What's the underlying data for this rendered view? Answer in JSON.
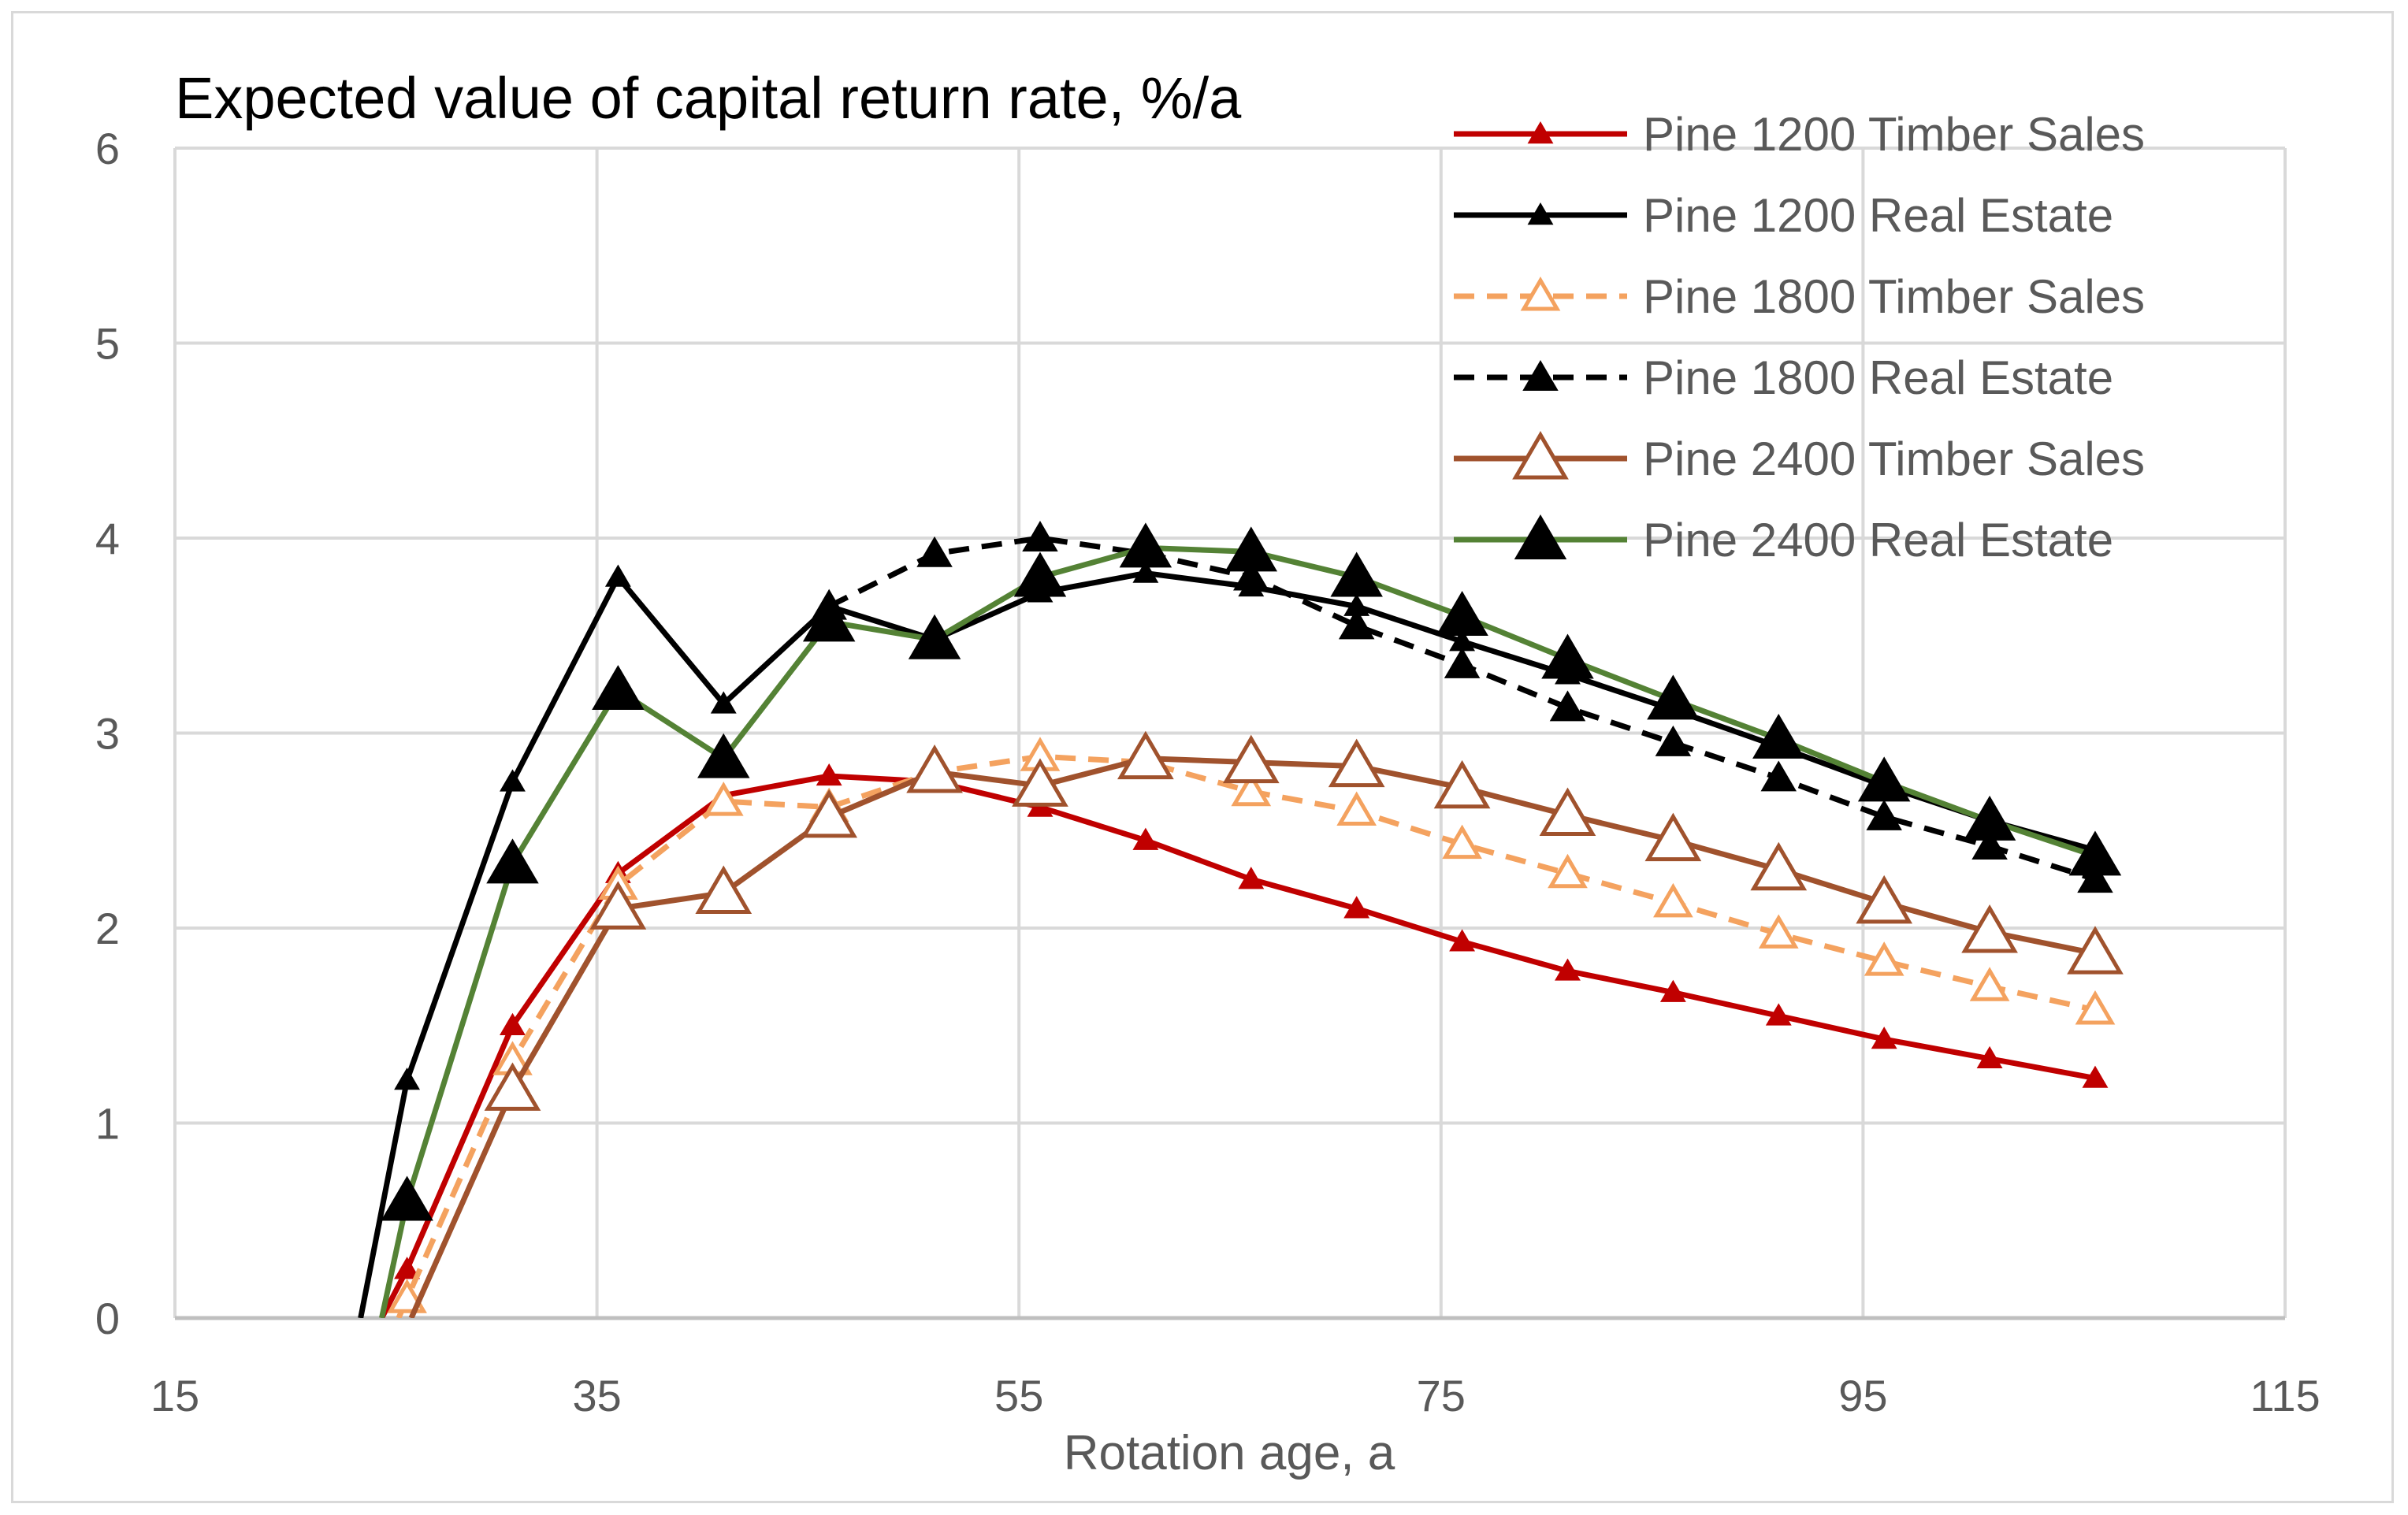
{
  "chart_data": {
    "type": "line",
    "title": "Expected value of capital return rate,  %/a",
    "xlabel": "Rotation age, a",
    "ylabel": "",
    "xlim": [
      15,
      115
    ],
    "ylim": [
      0,
      6
    ],
    "xticks": [
      "15",
      "35",
      "55",
      "75",
      "95",
      "115"
    ],
    "xtick_values": [
      15,
      35,
      55,
      75,
      95,
      115
    ],
    "yticks": [
      "0",
      "1",
      "2",
      "3",
      "4",
      "5",
      "6"
    ],
    "ytick_values": [
      0,
      1,
      2,
      3,
      4,
      5,
      6
    ],
    "grid": true,
    "legend_position": "top-right",
    "series": [
      {
        "name": "Pine 1200 Timber Sales",
        "color": "#c00000",
        "dash": false,
        "marker": "small-filled-triangle",
        "x": [
          24.8,
          26,
          31,
          36,
          41,
          46,
          51,
          56,
          61,
          66,
          71,
          76,
          81,
          86,
          91,
          96,
          101,
          106
        ],
        "y": [
          0,
          0.25,
          1.5,
          2.28,
          2.68,
          2.78,
          2.75,
          2.62,
          2.45,
          2.25,
          2.1,
          1.93,
          1.78,
          1.67,
          1.55,
          1.43,
          1.33,
          1.23
        ]
      },
      {
        "name": "Pine 1200 Real Estate",
        "color": "#000000",
        "dash": false,
        "marker": "small-filled-triangle",
        "x": [
          23.8,
          26,
          31,
          36,
          41,
          46,
          51,
          56,
          61,
          66,
          71,
          76,
          81,
          86,
          91,
          96,
          101,
          106
        ],
        "y": [
          0,
          1.22,
          2.75,
          3.8,
          3.15,
          3.65,
          3.48,
          3.72,
          3.82,
          3.75,
          3.65,
          3.47,
          3.3,
          3.12,
          2.93,
          2.73,
          2.55,
          2.4
        ]
      },
      {
        "name": "Pine 1800 Timber Sales",
        "color": "#f4a25f",
        "dash": true,
        "marker": "medium-open-triangle",
        "x": [
          25.6,
          26,
          31,
          36,
          41,
          46,
          51,
          56,
          61,
          66,
          71,
          76,
          81,
          86,
          91,
          96,
          101,
          106
        ],
        "y": [
          0,
          0.1,
          1.32,
          2.22,
          2.65,
          2.62,
          2.8,
          2.88,
          2.85,
          2.7,
          2.6,
          2.43,
          2.28,
          2.13,
          1.97,
          1.83,
          1.7,
          1.58
        ]
      },
      {
        "name": "Pine 1800 Real Estate",
        "color": "#000000",
        "dash": true,
        "marker": "medium-filled-triangle",
        "x": [
          46,
          51,
          56,
          61,
          66,
          71,
          76,
          81,
          86,
          91,
          96,
          101,
          106
        ],
        "y": [
          3.65,
          3.92,
          4.0,
          3.92,
          3.8,
          3.55,
          3.35,
          3.13,
          2.95,
          2.77,
          2.57,
          2.42,
          2.25
        ]
      },
      {
        "name": "Pine 2400 Timber Sales",
        "color": "#a0522d",
        "dash": false,
        "marker": "large-open-triangle",
        "x": [
          26.2,
          31,
          36,
          41,
          46,
          51,
          56,
          61,
          66,
          71,
          76,
          81,
          86,
          91,
          96,
          101,
          106
        ],
        "y": [
          0,
          1.17,
          2.1,
          2.18,
          2.57,
          2.8,
          2.73,
          2.87,
          2.85,
          2.83,
          2.72,
          2.58,
          2.45,
          2.3,
          2.13,
          1.98,
          1.87
        ]
      },
      {
        "name": "Pine 2400 Real Estate",
        "color": "#548235",
        "dash": false,
        "marker": "large-filled-triangle",
        "x": [
          24.8,
          26,
          31,
          36,
          41,
          46,
          51,
          56,
          61,
          66,
          71,
          76,
          81,
          86,
          91,
          96,
          101,
          106
        ],
        "y": [
          0,
          0.6,
          2.33,
          3.22,
          2.87,
          3.57,
          3.48,
          3.8,
          3.95,
          3.93,
          3.8,
          3.6,
          3.38,
          3.17,
          2.97,
          2.75,
          2.55,
          2.37
        ]
      }
    ]
  }
}
